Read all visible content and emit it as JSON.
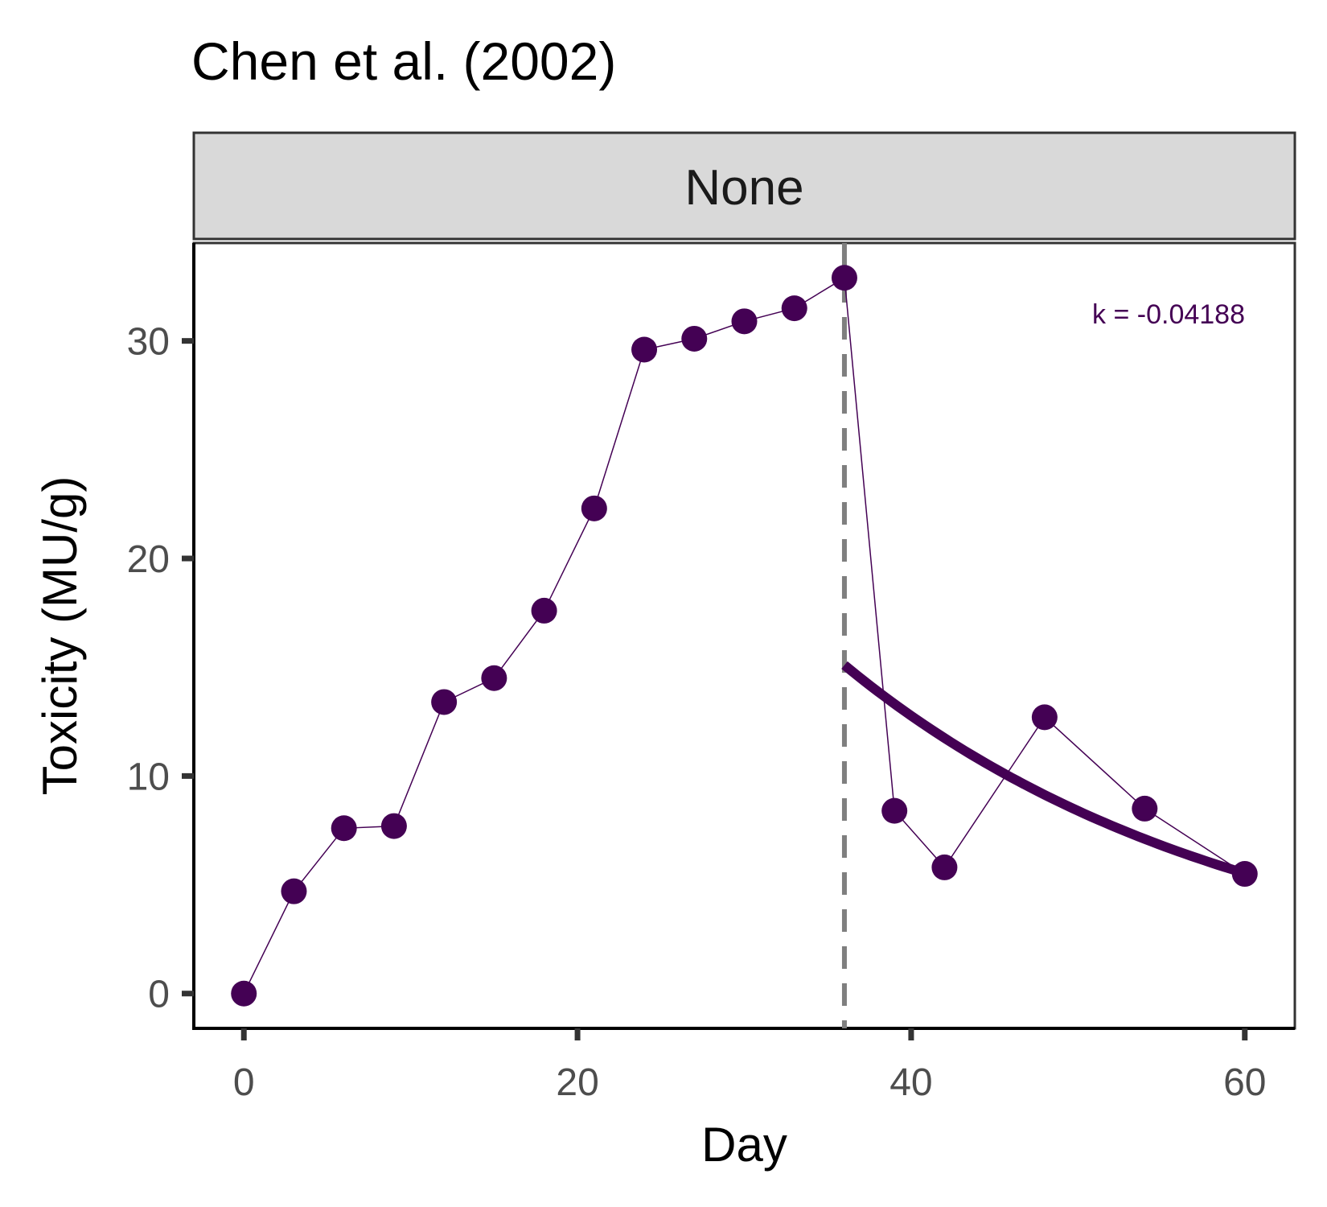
{
  "chart_data": {
    "type": "line",
    "title": "Chen et al. (2002)",
    "panel_label": "None",
    "xlabel": "Day",
    "ylabel": "Toxicity (MU/g)",
    "xlim": [
      -3,
      63
    ],
    "ylim": [
      -1.6,
      34.5
    ],
    "x_ticks": [
      0,
      20,
      40,
      60
    ],
    "y_ticks": [
      0,
      10,
      20,
      30
    ],
    "grid": false,
    "depuration_start_day": 36,
    "annotation": "k = -0.04188",
    "colors": {
      "series": "#440154",
      "vline": "#7f7f7f",
      "strip_fill": "#d9d9d9"
    },
    "series": [
      {
        "x": [
          0,
          3,
          6,
          9,
          12,
          15,
          18,
          21,
          24,
          27,
          30,
          33,
          36,
          39,
          42,
          48,
          54,
          60
        ],
        "values": [
          0,
          4.7,
          7.6,
          7.7,
          13.4,
          14.5,
          17.6,
          22.3,
          29.6,
          30.1,
          30.9,
          31.5,
          32.9,
          8.4,
          5.8,
          12.7,
          8.5,
          5.5
        ]
      }
    ],
    "fit": {
      "k": -0.04188,
      "y0": 15.1,
      "x_start": 36,
      "x_end": 60
    }
  }
}
